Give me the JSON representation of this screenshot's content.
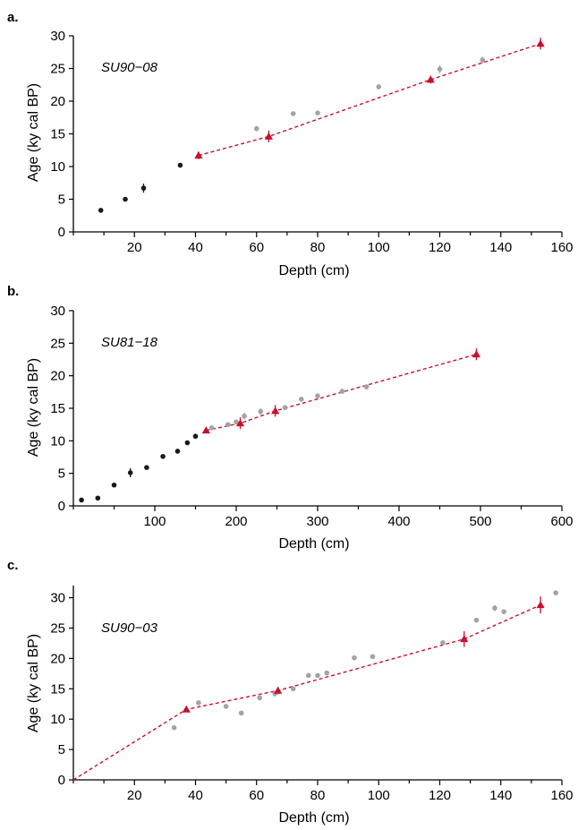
{
  "colors": {
    "black_points": "#1a1a1a",
    "grey_points": "#a3a3a3",
    "model": "#c8102e",
    "axis": "#000000"
  },
  "chart_data": [
    {
      "type": "scatter",
      "panel": "a.",
      "core": "SU90−08",
      "xlabel": "Depth (cm)",
      "ylabel": "Age (ky cal BP)",
      "xlim": [
        0,
        160
      ],
      "ylim": [
        0,
        30
      ],
      "xticks": [
        "20",
        "40",
        "60",
        "80",
        "100",
        "120",
        "140",
        "160"
      ],
      "yticks": [
        "0",
        "5",
        "10",
        "15",
        "20",
        "25",
        "30"
      ],
      "black_points": [
        {
          "x": 9,
          "y": 3.3,
          "err": 0.2
        },
        {
          "x": 17,
          "y": 5.0,
          "err": 0.2
        },
        {
          "x": 23,
          "y": 6.7,
          "err": 0.7
        },
        {
          "x": 35,
          "y": 10.2,
          "err": 0.2
        }
      ],
      "grey_points": [
        {
          "x": 60,
          "y": 15.8,
          "err": 0.4
        },
        {
          "x": 72,
          "y": 18.1,
          "err": 0.3
        },
        {
          "x": 80,
          "y": 18.2,
          "err": 0.3
        },
        {
          "x": 100,
          "y": 22.2,
          "err": 0.4
        },
        {
          "x": 120,
          "y": 24.9,
          "err": 0.6
        },
        {
          "x": 134,
          "y": 26.3,
          "err": 0.5
        }
      ],
      "model_points": [
        {
          "x": 41,
          "y": 11.7,
          "err": 0.6
        },
        {
          "x": 64,
          "y": 14.6,
          "err": 0.9
        },
        {
          "x": 117,
          "y": 23.3,
          "err": 0.6
        },
        {
          "x": 153,
          "y": 28.8,
          "err": 0.9
        }
      ],
      "model_line": [
        [
          41,
          11.7
        ],
        [
          64,
          14.6
        ],
        [
          117,
          23.3
        ],
        [
          153,
          28.8
        ]
      ]
    },
    {
      "type": "scatter",
      "panel": "b.",
      "core": "SU81−18",
      "xlabel": "Depth (cm)",
      "ylabel": "Age (ky cal BP)",
      "xlim": [
        0,
        600
      ],
      "ylim": [
        0,
        30
      ],
      "xticks": [
        "100",
        "200",
        "300",
        "400",
        "500",
        "600"
      ],
      "yticks": [
        "0",
        "5",
        "10",
        "15",
        "20",
        "25",
        "30"
      ],
      "black_points": [
        {
          "x": 10,
          "y": 0.9,
          "err": 0.3
        },
        {
          "x": 30,
          "y": 1.2,
          "err": 0.2
        },
        {
          "x": 50,
          "y": 3.2,
          "err": 0.2
        },
        {
          "x": 70,
          "y": 5.1,
          "err": 0.7
        },
        {
          "x": 90,
          "y": 5.9,
          "err": 0.3
        },
        {
          "x": 110,
          "y": 7.6,
          "err": 0.2
        },
        {
          "x": 128,
          "y": 8.4,
          "err": 0.3
        },
        {
          "x": 140,
          "y": 9.7,
          "err": 0.3
        },
        {
          "x": 150,
          "y": 10.7,
          "err": 0.4
        }
      ],
      "grey_points": [
        {
          "x": 170,
          "y": 12.0,
          "err": 0.3
        },
        {
          "x": 190,
          "y": 12.5,
          "err": 0.3
        },
        {
          "x": 200,
          "y": 12.9,
          "err": 0.3
        },
        {
          "x": 210,
          "y": 13.8,
          "err": 0.5
        },
        {
          "x": 230,
          "y": 14.5,
          "err": 0.5
        },
        {
          "x": 260,
          "y": 15.1,
          "err": 0.4
        },
        {
          "x": 280,
          "y": 16.4,
          "err": 0.4
        },
        {
          "x": 300,
          "y": 16.9,
          "err": 0.4
        },
        {
          "x": 330,
          "y": 17.6,
          "err": 0.4
        },
        {
          "x": 360,
          "y": 18.3,
          "err": 0.4
        }
      ],
      "model_points": [
        {
          "x": 163,
          "y": 11.6,
          "err": 0.3
        },
        {
          "x": 205,
          "y": 12.7,
          "err": 0.9
        },
        {
          "x": 248,
          "y": 14.6,
          "err": 0.9
        },
        {
          "x": 495,
          "y": 23.3,
          "err": 0.9
        }
      ],
      "model_line": [
        [
          163,
          11.6
        ],
        [
          205,
          12.7
        ],
        [
          248,
          14.6
        ],
        [
          495,
          23.3
        ]
      ]
    },
    {
      "type": "scatter",
      "panel": "c.",
      "core": "SU90−03",
      "xlabel": "Depth (cm)",
      "ylabel": "Age (ky cal BP)",
      "xlim": [
        0,
        160
      ],
      "ylim": [
        0,
        32
      ],
      "xticks": [
        "20",
        "40",
        "60",
        "80",
        "100",
        "120",
        "140",
        "160"
      ],
      "yticks": [
        "0",
        "5",
        "10",
        "15",
        "20",
        "25",
        "30"
      ],
      "black_points": [],
      "grey_points": [
        {
          "x": 33,
          "y": 8.6,
          "err": 0.2
        },
        {
          "x": 41,
          "y": 12.7,
          "err": 0.2
        },
        {
          "x": 50,
          "y": 12.1,
          "err": 0.2
        },
        {
          "x": 55,
          "y": 11.0,
          "err": 0.2
        },
        {
          "x": 61,
          "y": 13.5,
          "err": 0.3
        },
        {
          "x": 66,
          "y": 14.2,
          "err": 0.5
        },
        {
          "x": 72,
          "y": 15.0,
          "err": 0.3
        },
        {
          "x": 77,
          "y": 17.2,
          "err": 0.4
        },
        {
          "x": 80,
          "y": 17.2,
          "err": 0.3
        },
        {
          "x": 83,
          "y": 17.6,
          "err": 0.3
        },
        {
          "x": 92,
          "y": 20.1,
          "err": 0.3
        },
        {
          "x": 98,
          "y": 20.3,
          "err": 0.3
        },
        {
          "x": 121,
          "y": 22.6,
          "err": 0.3
        },
        {
          "x": 132,
          "y": 26.3,
          "err": 0.3
        },
        {
          "x": 138,
          "y": 28.3,
          "err": 0.5
        },
        {
          "x": 141,
          "y": 27.7,
          "err": 0.3
        },
        {
          "x": 158,
          "y": 30.8,
          "err": 0.3
        }
      ],
      "model_points": [
        {
          "x": 37,
          "y": 11.6,
          "err": 0.4
        },
        {
          "x": 67,
          "y": 14.7,
          "err": 0.6
        },
        {
          "x": 128,
          "y": 23.2,
          "err": 1.3
        },
        {
          "x": 153,
          "y": 28.8,
          "err": 1.4
        }
      ],
      "model_line": [
        [
          0,
          0
        ],
        [
          37,
          11.6
        ],
        [
          67,
          14.7
        ],
        [
          128,
          23.2
        ],
        [
          153,
          28.8
        ]
      ]
    }
  ]
}
